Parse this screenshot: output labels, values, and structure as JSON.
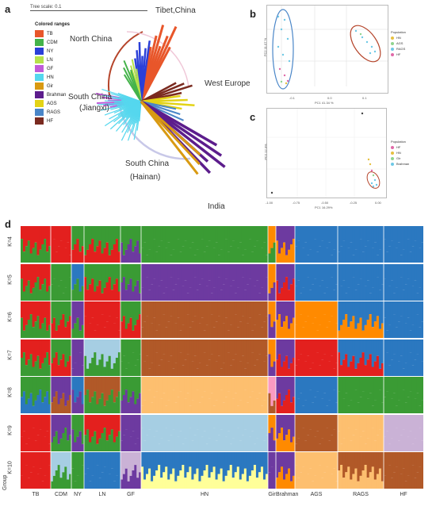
{
  "panels": {
    "a": "a",
    "b": "b",
    "c": "c",
    "d": "d"
  },
  "tree": {
    "scale_label": "Tree scale: 0.1",
    "regions": {
      "tibet": "Tibet,China",
      "north": "North China",
      "west_europe": "West Europe",
      "south_jiangxi_1": "South China",
      "south_jiangxi_2": "(Jiangxi)",
      "south_hainan_1": "South China",
      "south_hainan_2": "(Hainan)",
      "india": "India"
    },
    "legend_title": "Colored ranges",
    "legend": [
      {
        "label": "TB",
        "color": "#e8562a"
      },
      {
        "label": "CDM",
        "color": "#44b34a"
      },
      {
        "label": "NY",
        "color": "#2a3fd8"
      },
      {
        "label": "LN",
        "color": "#b5e24a"
      },
      {
        "label": "GF",
        "color": "#c05ad9"
      },
      {
        "label": "HN",
        "color": "#55d7ee"
      },
      {
        "label": "Gir",
        "color": "#d99a12"
      },
      {
        "label": "Brahman",
        "color": "#5c1d8c"
      },
      {
        "label": "AGS",
        "color": "#e3d316"
      },
      {
        "label": "RAGS",
        "color": "#4a86c8"
      },
      {
        "label": "HF",
        "color": "#7a2a1f"
      }
    ]
  },
  "pca_b": {
    "xlabel": "PC1 41.34 %",
    "ylabel": "PC2 11.07 %",
    "legend_title": "Population",
    "legend": [
      {
        "label": "HN",
        "color": "#e6c040"
      },
      {
        "label": "AGS",
        "color": "#8fd48f"
      },
      {
        "label": "RAGS",
        "color": "#6ec8e6"
      },
      {
        "label": "HF",
        "color": "#e06aa8"
      }
    ],
    "xticks": [
      "-0.1",
      "0.0",
      "0.1"
    ]
  },
  "pca_c": {
    "xlabel": "PC1 16.29%",
    "ylabel": "PC2 12.0%",
    "legend_title": "Population",
    "legend": [
      {
        "label": "HF",
        "color": "#e06aa8"
      },
      {
        "label": "HN",
        "color": "#e6c040"
      },
      {
        "label": "Gir",
        "color": "#8fd48f"
      },
      {
        "label": "Brahman",
        "color": "#6ec8e6"
      }
    ],
    "xticks": [
      "-1.00",
      "-0.75",
      "-0.50",
      "-0.25",
      "0.00"
    ]
  },
  "admixture": {
    "k_labels": [
      "K=4",
      "K=5",
      "K=6",
      "K=7",
      "K=8",
      "K=9",
      "K=10"
    ],
    "group_axis_label": "Group",
    "groups": [
      "TB",
      "CDM",
      "NY",
      "LN",
      "GF",
      "HN",
      "Gir",
      "Brahman",
      "AGS",
      "RAGS",
      "HF"
    ]
  }
}
